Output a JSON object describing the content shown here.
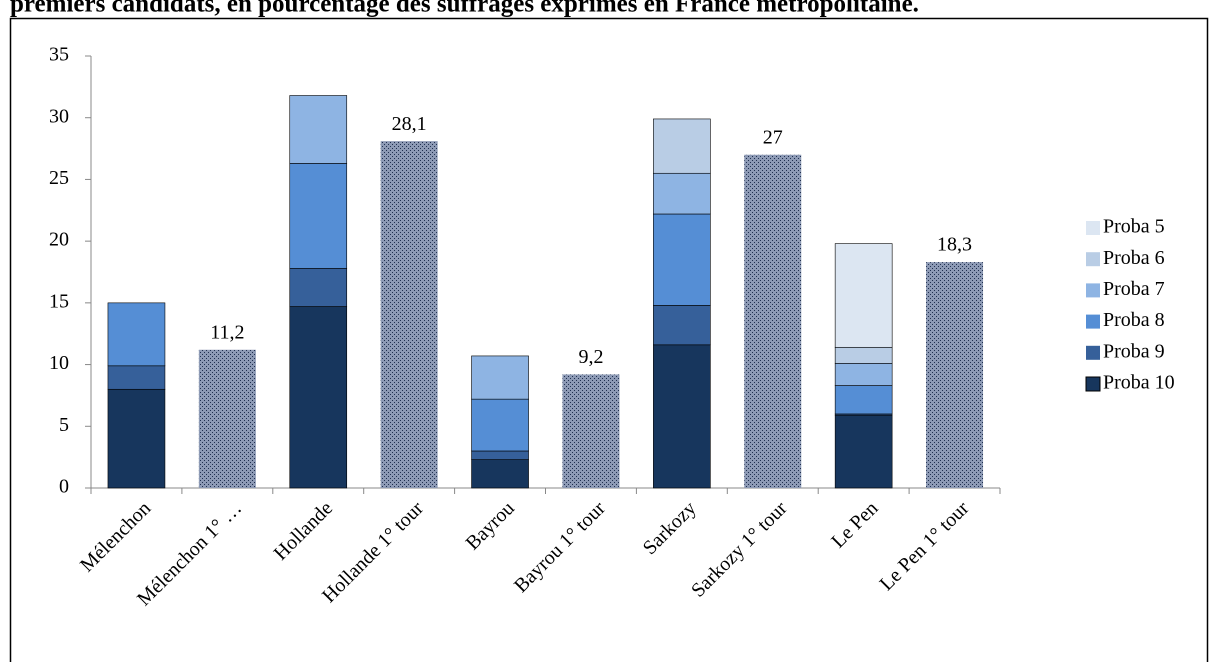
{
  "chart_data": {
    "type": "stacked_bar",
    "title": "premiers candidats, en pourcentage des suffrages exprimés en France métropolitaine.",
    "categories": [
      "Mélenchon",
      "Mélenchon 1° …",
      "Hollande",
      "Hollande 1° tour",
      "Bayrou",
      "Bayrou 1° tour",
      "Sarkozy",
      "Sarkozy 1° tour",
      "Le Pen",
      "Le Pen 1° tour"
    ],
    "series": [
      {
        "name": "Proba 10",
        "color": "#17365d",
        "values": [
          8.0,
          null,
          14.7,
          null,
          2.3,
          null,
          11.6,
          null,
          5.9,
          null
        ]
      },
      {
        "name": "Proba 9",
        "color": "#36609a",
        "values": [
          1.9,
          null,
          3.1,
          null,
          0.7,
          null,
          3.2,
          null,
          0.1,
          null
        ]
      },
      {
        "name": "Proba 8",
        "color": "#558ed5",
        "values": [
          5.1,
          null,
          8.5,
          null,
          4.2,
          null,
          7.4,
          null,
          2.3,
          null
        ]
      },
      {
        "name": "Proba 7",
        "color": "#8eb4e3",
        "values": [
          null,
          null,
          5.5,
          null,
          3.5,
          null,
          3.3,
          null,
          1.8,
          null
        ]
      },
      {
        "name": "Proba 6",
        "color": "#b9cde5",
        "values": [
          null,
          null,
          null,
          null,
          null,
          null,
          4.4,
          null,
          1.3,
          null
        ]
      },
      {
        "name": "Proba 5",
        "color": "#dce6f2",
        "values": [
          null,
          null,
          null,
          null,
          null,
          null,
          null,
          null,
          8.4,
          null
        ]
      },
      {
        "color": "#8d9ab5",
        "pattern": true,
        "values": [
          null,
          11.2,
          null,
          28.1,
          null,
          9.2,
          null,
          27,
          null,
          18.3
        ],
        "value_labels": [
          null,
          "11,2",
          null,
          "28,1",
          null,
          "9,2",
          null,
          "27",
          null,
          "18,3"
        ]
      }
    ],
    "ylim": [
      0,
      35
    ],
    "yticks": [
      0,
      5,
      10,
      15,
      20,
      25,
      30,
      35
    ],
    "legend": "right"
  }
}
